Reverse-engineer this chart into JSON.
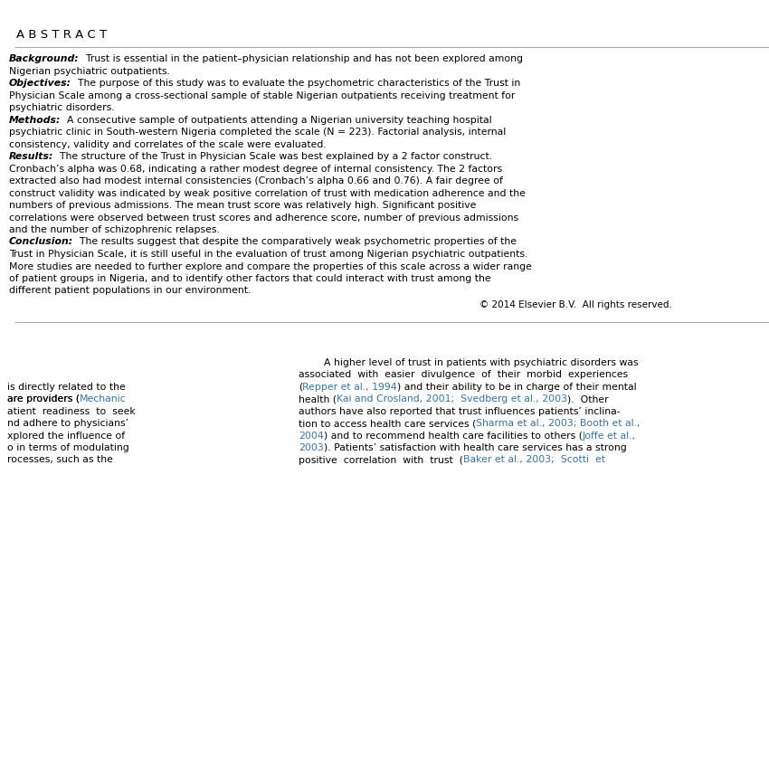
{
  "bg_color": "#ffffff",
  "text_color": "#000000",
  "link_color": "#2e75b6",
  "abstract_header": "A B S T R A C T",
  "abstract_header_fontsize": 9.5,
  "abstract_font_size": 7.8,
  "body_font_size": 7.8,
  "line_color": "#aaaaaa",
  "abstract_paragraphs": [
    {
      "label": "Background:",
      "lines": [
        "  Trust is essential in the patient–physician relationship and has not been explored among",
        "Nigerian psychiatric outpatients."
      ]
    },
    {
      "label": "Objectives:",
      "lines": [
        "  The purpose of this study was to evaluate the psychometric characteristics of the Trust in",
        "Physician Scale among a cross-sectional sample of stable Nigerian outpatients receiving treatment for",
        "psychiatric disorders."
      ]
    },
    {
      "label": "Methods:",
      "lines": [
        "  A consecutive sample of outpatients attending a Nigerian university teaching hospital",
        "psychiatric clinic in South-western Nigeria completed the scale (N = 223). Factorial analysis, internal",
        "consistency, validity and correlates of the scale were evaluated."
      ]
    },
    {
      "label": "Results:",
      "lines": [
        "  The structure of the Trust in Physician Scale was best explained by a 2 factor construct.",
        "Cronbach’s alpha was 0.68, indicating a rather modest degree of internal consistency. The 2 factors",
        "extracted also had modest internal consistencies (Cronbach’s alpha 0.66 and 0.76). A fair degree of",
        "construct validity was indicated by weak positive correlation of trust with medication adherence and the",
        "numbers of previous admissions. The mean trust score was relatively high. Significant positive",
        "correlations were observed between trust scores and adherence score, number of previous admissions",
        "and the number of schizophrenic relapses."
      ]
    },
    {
      "label": "Conclusion:",
      "lines": [
        "  The results suggest that despite the comparatively weak psychometric properties of the",
        "Trust in Physician Scale, it is still useful in the evaluation of trust among Nigerian psychiatric outpatients.",
        "More studies are needed to further explore and compare the properties of this scale across a wider range",
        "of patient groups in Nigeria, and to identify other factors that could interact with trust among the",
        "different patient populations in our environment."
      ]
    }
  ],
  "copyright_text": "© 2014 Elsevier B.V.  All rights reserved.",
  "body_left_lines": [
    [
      "is directly related to the",
      false
    ],
    [
      "are providers (",
      false
    ],
    [
      "atient  readiness  to  seek",
      false
    ],
    [
      "nd adhere to physicians’",
      false
    ],
    [
      "xplored the influence of",
      false
    ],
    [
      "o in terms of modulating",
      false
    ],
    [
      "rocesses, such as the",
      false
    ]
  ],
  "body_left_mechanic": "Mechanic",
  "body_right_first_line": "        A higher level of trust in patients with psychiatric disorders was",
  "body_right_lines": [
    [
      [
        "associated  with  easier  divulgence  of  their  morbid  experiences",
        false
      ]
    ],
    [
      [
        "(",
        false
      ],
      [
        "Repper et al., 1994",
        true
      ],
      [
        ") and their ability to be in charge of their mental",
        false
      ]
    ],
    [
      [
        "health (",
        false
      ],
      [
        "Kai and Crosland, 2001;  Svedberg et al., 2003",
        true
      ],
      [
        ").  Other",
        false
      ]
    ],
    [
      [
        "authors have also reported that trust influences patients’ inclina-",
        false
      ]
    ],
    [
      [
        "tion to access health care services (",
        false
      ],
      [
        "Sharma et al., 2003; Booth et al.,",
        true
      ]
    ],
    [
      [
        "2004",
        true
      ],
      [
        ") and to recommend health care facilities to others (",
        false
      ],
      [
        "Joffe et al.,",
        true
      ]
    ],
    [
      [
        "2003",
        true
      ],
      [
        "). Patients’ satisfaction with health care services has a strong",
        false
      ]
    ],
    [
      [
        "positive  correlation  with  trust  (",
        false
      ],
      [
        "Baker et al., 2003;  Scotti  et",
        true
      ]
    ]
  ]
}
